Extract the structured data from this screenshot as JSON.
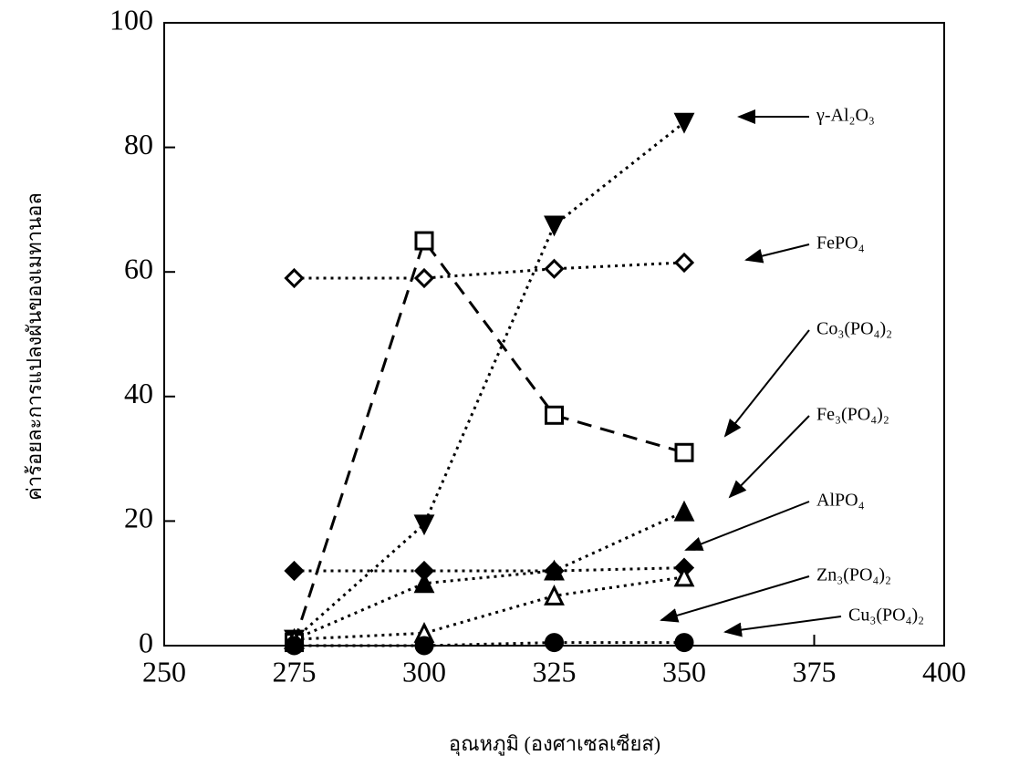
{
  "chart_data": {
    "type": "line",
    "x_label": "อุณหภูมิ (องศาเซลเซียส)",
    "y_label": "ค่าร้อยละการแปลงผันของเมทานอล",
    "x": [
      275,
      300,
      325,
      350
    ],
    "xlim": [
      250,
      400
    ],
    "xticks": [
      250,
      275,
      300,
      325,
      350,
      375,
      400
    ],
    "ylim": [
      0,
      100
    ],
    "yticks": [
      0,
      20,
      40,
      60,
      80,
      100
    ],
    "series": [
      {
        "name": "γ-Al₂O₃",
        "color": "#000000",
        "marker": "triangle-down",
        "filled": true,
        "dash": "dotted",
        "values": [
          1,
          19.5,
          67.5,
          84
        ]
      },
      {
        "name": "FePO₄",
        "color": "#000000",
        "marker": "diamond",
        "filled": false,
        "dash": "dotted",
        "values": [
          59,
          59,
          60.5,
          61.5
        ]
      },
      {
        "name": "Co₃(PO₄)₂",
        "color": "#000000",
        "marker": "square",
        "filled": false,
        "dash": "dashed",
        "values": [
          0.5,
          65,
          37,
          31
        ]
      },
      {
        "name": "Fe₃(PO₄)₂",
        "color": "#000000",
        "marker": "triangle-up",
        "filled": true,
        "dash": "dotted",
        "values": [
          1,
          10,
          12,
          21.5
        ]
      },
      {
        "name": "AlPO₄",
        "color": "#000000",
        "marker": "diamond",
        "filled": true,
        "dash": "dotted",
        "values": [
          12,
          12,
          12,
          12.5
        ]
      },
      {
        "name": "Zn₃(PO₄)₂",
        "color": "#000000",
        "marker": "triangle-up",
        "filled": false,
        "dash": "dotted",
        "values": [
          1,
          2,
          8,
          11
        ]
      },
      {
        "name": "Cu₃(PO₄)₂",
        "color": "#000000",
        "marker": "circle",
        "filled": true,
        "dash": "dotted",
        "values": [
          0,
          0,
          0.5,
          0.5
        ]
      }
    ]
  }
}
